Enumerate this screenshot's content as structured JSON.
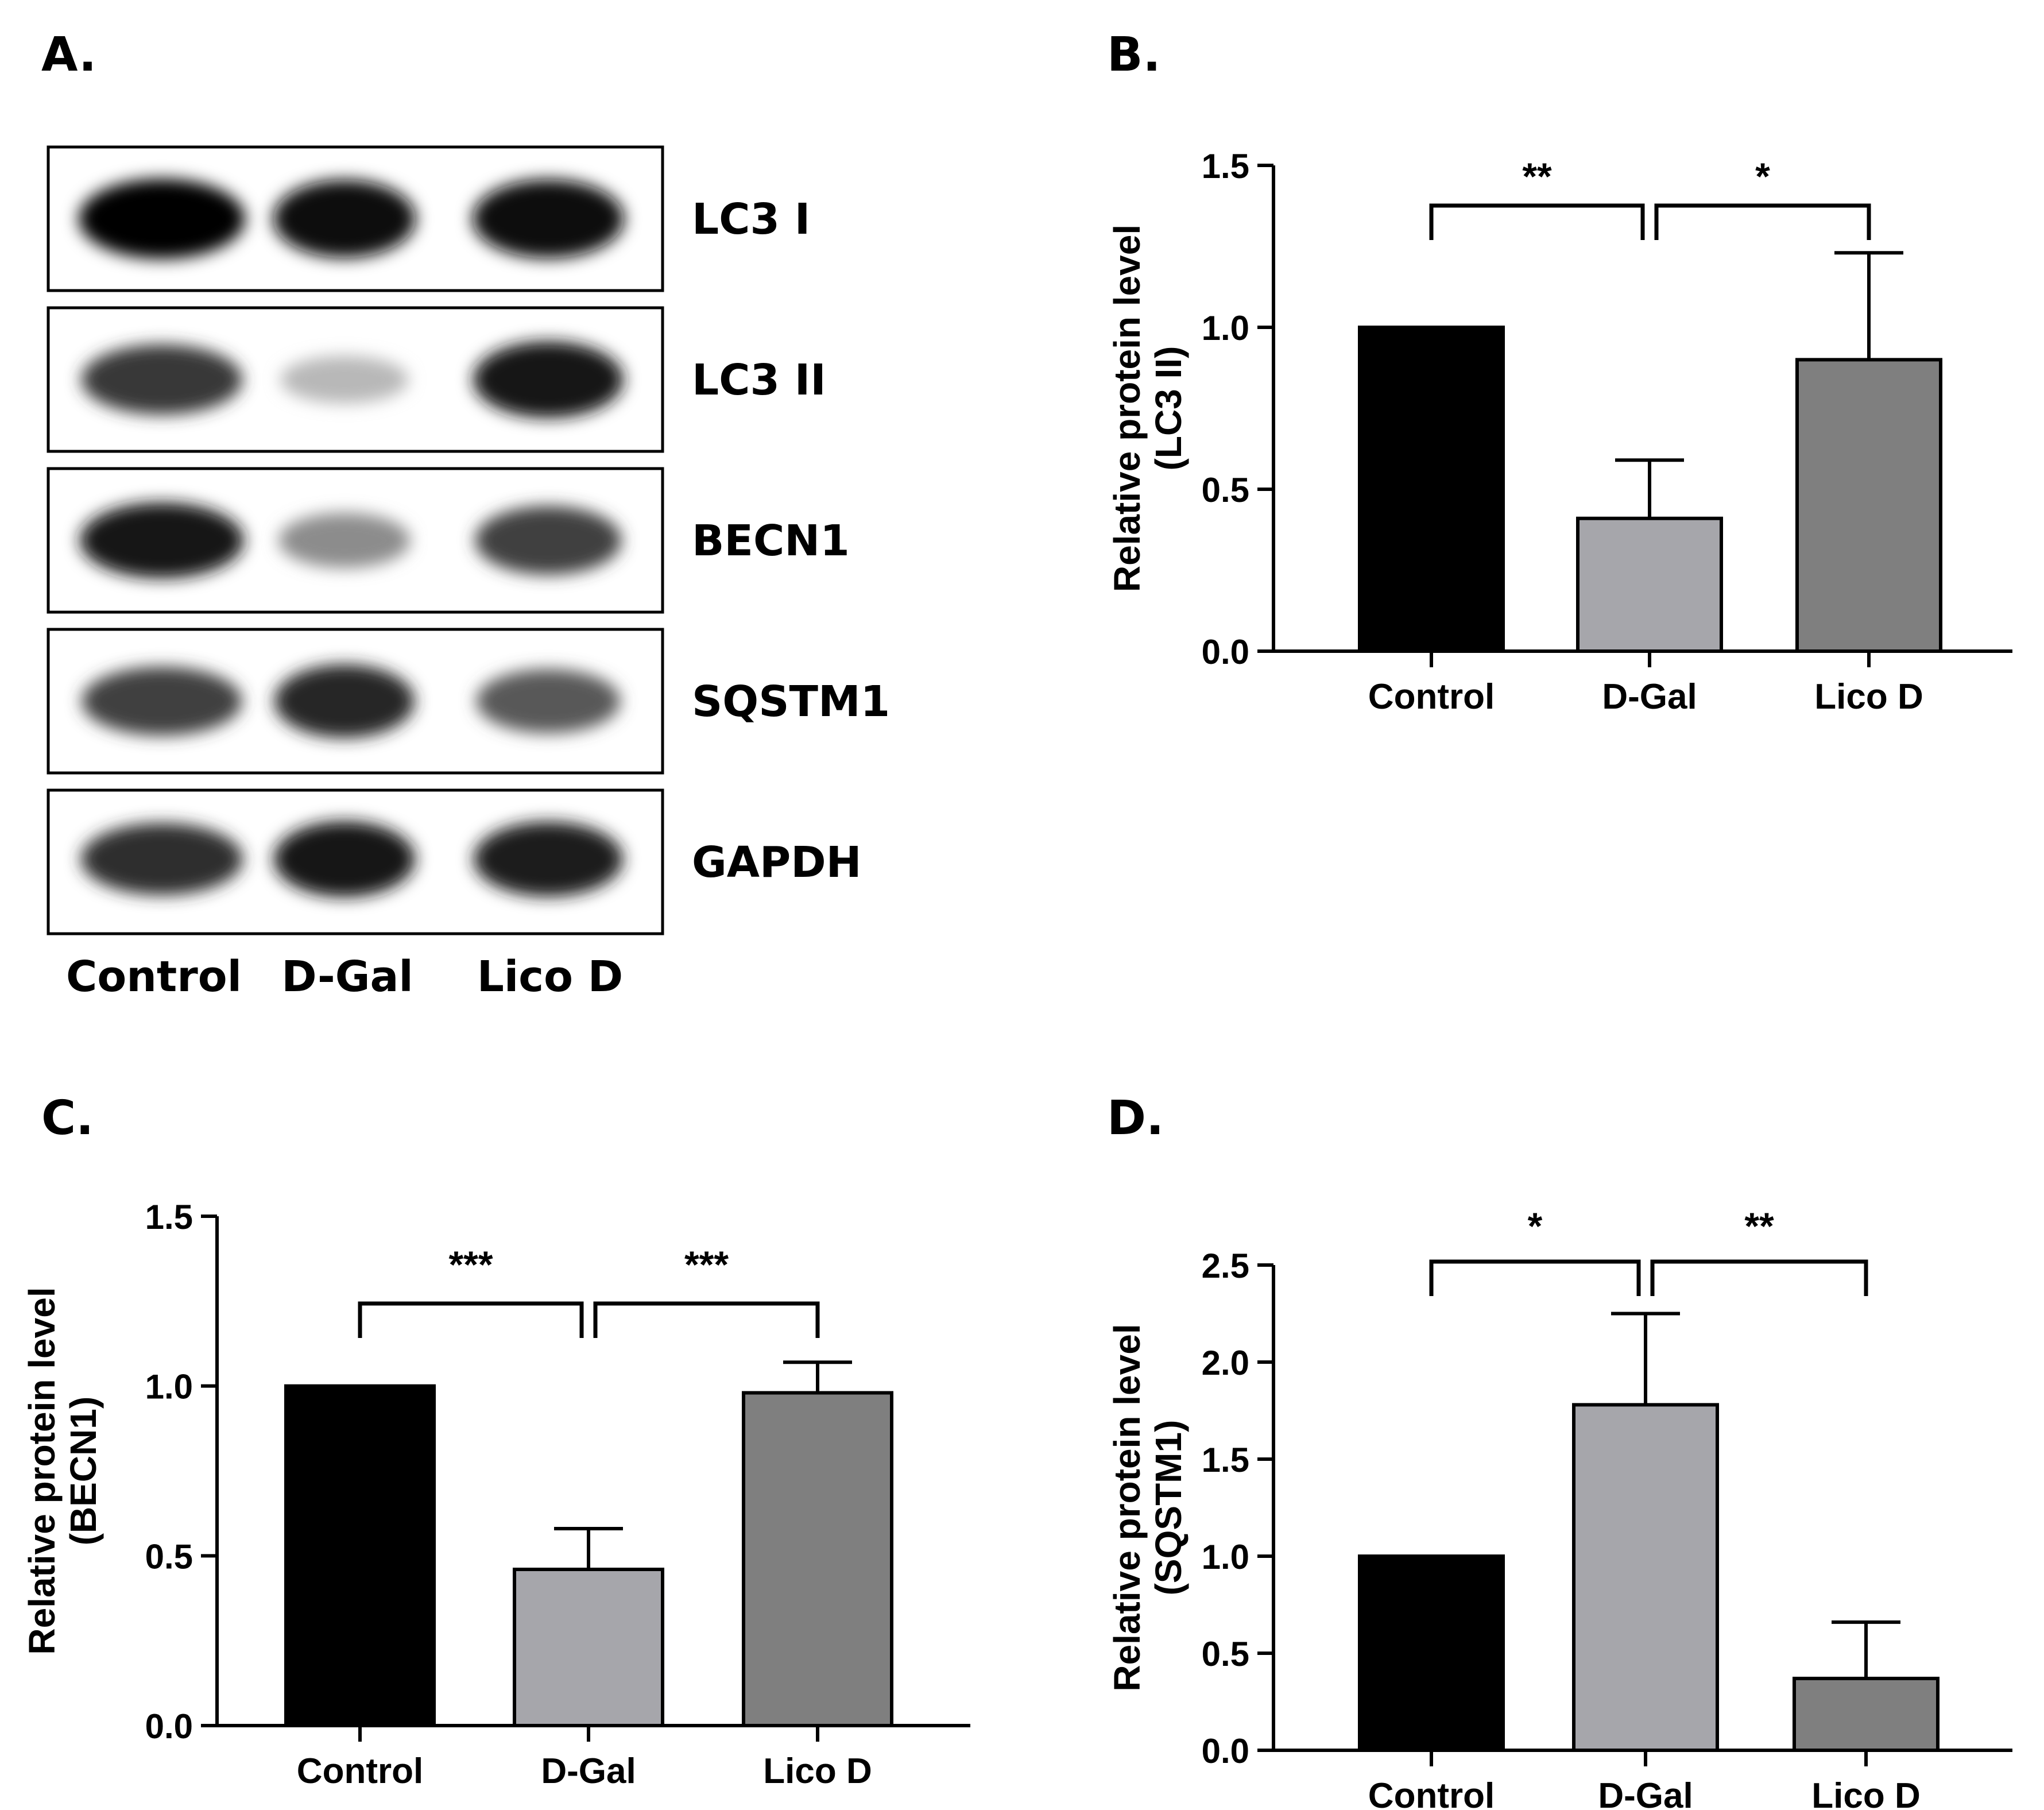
{
  "panels": {
    "a": "A.",
    "b": "B.",
    "c": "C.",
    "d": "D."
  },
  "blot": {
    "rows": [
      {
        "label": "LC3 I",
        "intensity": [
          1.0,
          0.95,
          0.97
        ]
      },
      {
        "label": "LC3 II",
        "intensity": [
          0.78,
          0.28,
          0.92
        ]
      },
      {
        "label": "BECN1",
        "intensity": [
          0.9,
          0.45,
          0.75
        ]
      },
      {
        "label": "SQSTM1",
        "intensity": [
          0.75,
          0.85,
          0.65
        ]
      },
      {
        "label": "GAPDH",
        "intensity": [
          0.82,
          0.9,
          0.88
        ]
      }
    ],
    "lanes": [
      "Control",
      "D-Gal",
      "Lico D"
    ]
  },
  "chart_data": [
    {
      "type": "bar",
      "panel": "B.",
      "categories": [
        "Control",
        "D-Gal",
        "Lico D"
      ],
      "values": [
        1.0,
        0.41,
        0.9
      ],
      "errors": [
        0.0,
        0.18,
        0.33
      ],
      "ylabel": [
        "Relative protein level",
        "(LC3 II)"
      ],
      "ylim": [
        0,
        1.5
      ],
      "yticks": [
        "0.0",
        "0.5",
        "1.0",
        "1.5"
      ],
      "colors": [
        "#000000",
        "#a6a6ab",
        "#7f7f7f"
      ],
      "brackets": [
        {
          "from": 0,
          "to": 1,
          "label": "**"
        },
        {
          "from": 1,
          "to": 2,
          "label": "*"
        }
      ]
    },
    {
      "type": "bar",
      "panel": "C.",
      "categories": [
        "Control",
        "D-Gal",
        "Lico D"
      ],
      "values": [
        1.0,
        0.46,
        0.98
      ],
      "errors": [
        0.0,
        0.12,
        0.09
      ],
      "ylabel": [
        "Relative protein level",
        "(BECN1)"
      ],
      "ylim": [
        0,
        1.5
      ],
      "yticks": [
        "0.0",
        "0.5",
        "1.0",
        "1.5"
      ],
      "colors": [
        "#000000",
        "#a6a6ab",
        "#7f7f7f"
      ],
      "brackets": [
        {
          "from": 0,
          "to": 1,
          "label": "***"
        },
        {
          "from": 1,
          "to": 2,
          "label": "***"
        }
      ]
    },
    {
      "type": "bar",
      "panel": "D.",
      "categories": [
        "Control",
        "D-Gal",
        "Lico D"
      ],
      "values": [
        1.0,
        1.78,
        0.37
      ],
      "errors": [
        0.0,
        0.47,
        0.29
      ],
      "ylabel": [
        "Relative protein level",
        "(SQSTM1)"
      ],
      "ylim": [
        0,
        2.5
      ],
      "yticks": [
        "0.0",
        "0.5",
        "1.0",
        "1.5",
        "2.0",
        "2.5"
      ],
      "colors": [
        "#000000",
        "#a6a6ab",
        "#7f7f7f"
      ],
      "brackets": [
        {
          "from": 0,
          "to": 1,
          "label": "*"
        },
        {
          "from": 1,
          "to": 2,
          "label": "**"
        }
      ]
    }
  ]
}
